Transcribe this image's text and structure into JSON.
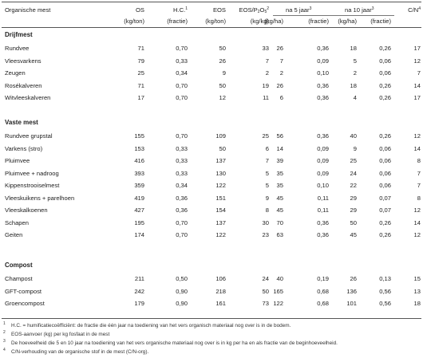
{
  "header": {
    "col0": "Organische mest",
    "os": "OS",
    "os_unit": "(kg/ton)",
    "hc": "H.C.",
    "hc_sup": "1",
    "hc_unit": "(fractie)",
    "eos": "EOS",
    "eos_unit": "(kg/ton)",
    "eosp_a": "EOS/P",
    "eosp_sub1": "2",
    "eosp_b": "O",
    "eosp_sub2": "5",
    "eosp_sup": "2",
    "eosp_unit": "(kg/kg)",
    "y5": "na 5 jaar",
    "y5_sup": "3",
    "y5_kg": "(kg/ha)",
    "y5_fr": "(fractie)",
    "y10": "na 10 jaar",
    "y10_sup": "3",
    "y10_kg": "(kg/ha)",
    "y10_fr": "(fractie)",
    "cn": "C/N",
    "cn_sup": "4"
  },
  "sections": [
    {
      "title": "Drijfmest",
      "rows": [
        [
          "Rundvee",
          "71",
          "0,70",
          "50",
          "33",
          "26",
          "0,36",
          "18",
          "0,26",
          "17"
        ],
        [
          "Vleesvarkens",
          "79",
          "0,33",
          "26",
          "7",
          "7",
          "0,09",
          "5",
          "0,06",
          "12"
        ],
        [
          "Zeugen",
          "25",
          "0,34",
          "9",
          "2",
          "2",
          "0,10",
          "2",
          "0,06",
          "7"
        ],
        [
          "Rosékalveren",
          "71",
          "0,70",
          "50",
          "19",
          "26",
          "0,36",
          "18",
          "0,26",
          "14"
        ],
        [
          "Witvleeskalveren",
          "17",
          "0,70",
          "12",
          "11",
          "6",
          "0,36",
          "4",
          "0,26",
          "17"
        ]
      ]
    },
    {
      "title": "Vaste mest",
      "rows": [
        [
          "Rundvee grupstal",
          "155",
          "0,70",
          "109",
          "25",
          "56",
          "0,36",
          "40",
          "0,26",
          "12"
        ],
        [
          "Varkens (stro)",
          "153",
          "0,33",
          "50",
          "6",
          "14",
          "0,09",
          "9",
          "0,06",
          "14"
        ],
        [
          "Pluimvee",
          "416",
          "0,33",
          "137",
          "7",
          "39",
          "0,09",
          "25",
          "0,06",
          "8"
        ],
        [
          "Pluimvee + nadroog",
          "393",
          "0,33",
          "130",
          "5",
          "35",
          "0,09",
          "24",
          "0,06",
          "7"
        ],
        [
          "Kippenstrooiselmest",
          "359",
          "0,34",
          "122",
          "5",
          "35",
          "0,10",
          "22",
          "0,06",
          "7"
        ],
        [
          "Vleeskuikens + parelhoen",
          "419",
          "0,36",
          "151",
          "9",
          "45",
          "0,11",
          "29",
          "0,07",
          "8"
        ],
        [
          "Vleeskalkoenen",
          "427",
          "0,36",
          "154",
          "8",
          "45",
          "0,11",
          "29",
          "0,07",
          "12"
        ],
        [
          "Schapen",
          "195",
          "0,70",
          "137",
          "30",
          "70",
          "0,36",
          "50",
          "0,26",
          "14"
        ],
        [
          "Geiten",
          "174",
          "0,70",
          "122",
          "23",
          "63",
          "0,36",
          "45",
          "0,26",
          "12"
        ]
      ]
    },
    {
      "title": "Compost",
      "rows": [
        [
          "Champost",
          "211",
          "0,50",
          "106",
          "24",
          "40",
          "0,19",
          "26",
          "0,13",
          "15"
        ],
        [
          "GFT-compost",
          "242",
          "0,90",
          "218",
          "50",
          "165",
          "0,68",
          "136",
          "0,56",
          "13"
        ],
        [
          "Groencompost",
          "179",
          "0,90",
          "161",
          "73",
          "122",
          "0,68",
          "101",
          "0,56",
          "18"
        ]
      ]
    }
  ],
  "footnotes": [
    {
      "mark": "1",
      "text": "H.C. = humificatiecoëfficiënt: de fractie die één jaar na toediening van het vers organisch materiaal nog over is in de bodem."
    },
    {
      "mark": "2",
      "text": "EOS-aanvoer (kg) per kg fosfaat in de mest"
    },
    {
      "mark": "3",
      "text": "De hoeveelheid die 5 en 10 jaar na toediening van het vers organische materiaal nog over is in kg per ha en als fractie van de beginhoeveelheid."
    },
    {
      "mark": "4",
      "text": "C/N-verhouding van de organische stof in de mest (C/N-org)."
    }
  ]
}
